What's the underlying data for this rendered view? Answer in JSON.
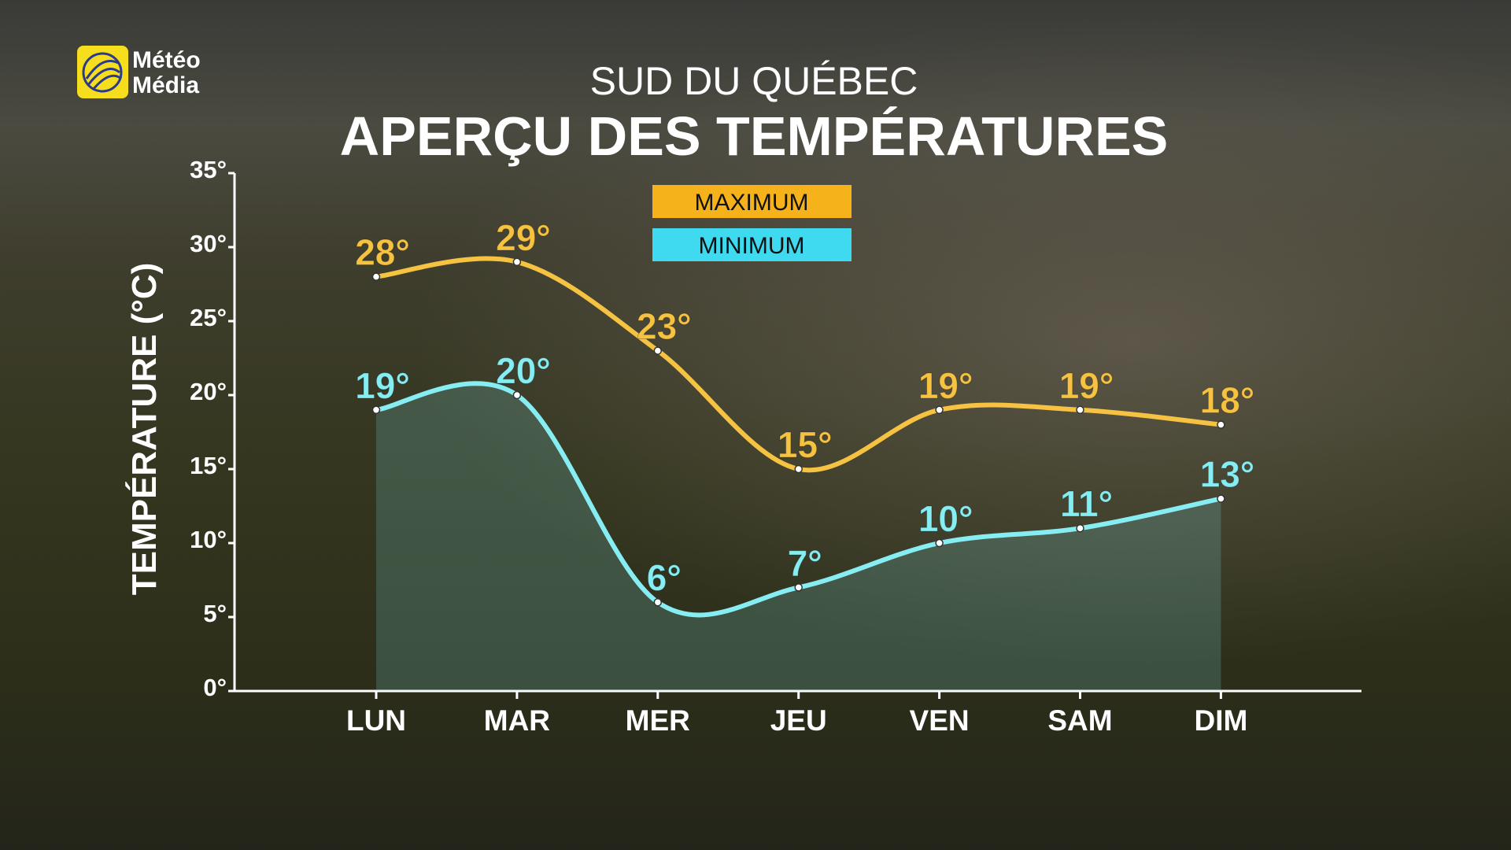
{
  "logo": {
    "line1": "Météo",
    "line2": "Média"
  },
  "chart_data": {
    "type": "line",
    "subtitle": "SUD DU QUÉBEC",
    "title": "APERÇU DES TEMPÉRATURES",
    "y_label": "TEMPÉRATURE (°C)",
    "categories": [
      "LUN",
      "MAR",
      "MER",
      "JEU",
      "VEN",
      "SAM",
      "DIM"
    ],
    "series": [
      {
        "name": "MAXIMUM",
        "color": "#f5c242",
        "legend_color": "#f5b21b",
        "values": [
          28,
          29,
          23,
          15,
          19,
          19,
          18
        ],
        "value_labels": [
          "28°",
          "29°",
          "23°",
          "15°",
          "19°",
          "19°",
          "18°"
        ]
      },
      {
        "name": "MINIMUM",
        "color": "#86eef2",
        "legend_color": "#3fd9f0",
        "area": true,
        "values": [
          19,
          20,
          6,
          7,
          10,
          11,
          13
        ],
        "value_labels": [
          "19°",
          "20°",
          "6°",
          "7°",
          "10°",
          "11°",
          "13°"
        ]
      }
    ],
    "ylim": [
      0,
      35
    ],
    "yticks": [
      {
        "value": 0,
        "label": "0°"
      },
      {
        "value": 5,
        "label": "5°"
      },
      {
        "value": 10,
        "label": "10°"
      },
      {
        "value": 15,
        "label": "15°"
      },
      {
        "value": 20,
        "label": "20°"
      },
      {
        "value": 25,
        "label": "25°"
      },
      {
        "value": 30,
        "label": "30°"
      },
      {
        "value": 35,
        "label": "35°"
      }
    ]
  }
}
